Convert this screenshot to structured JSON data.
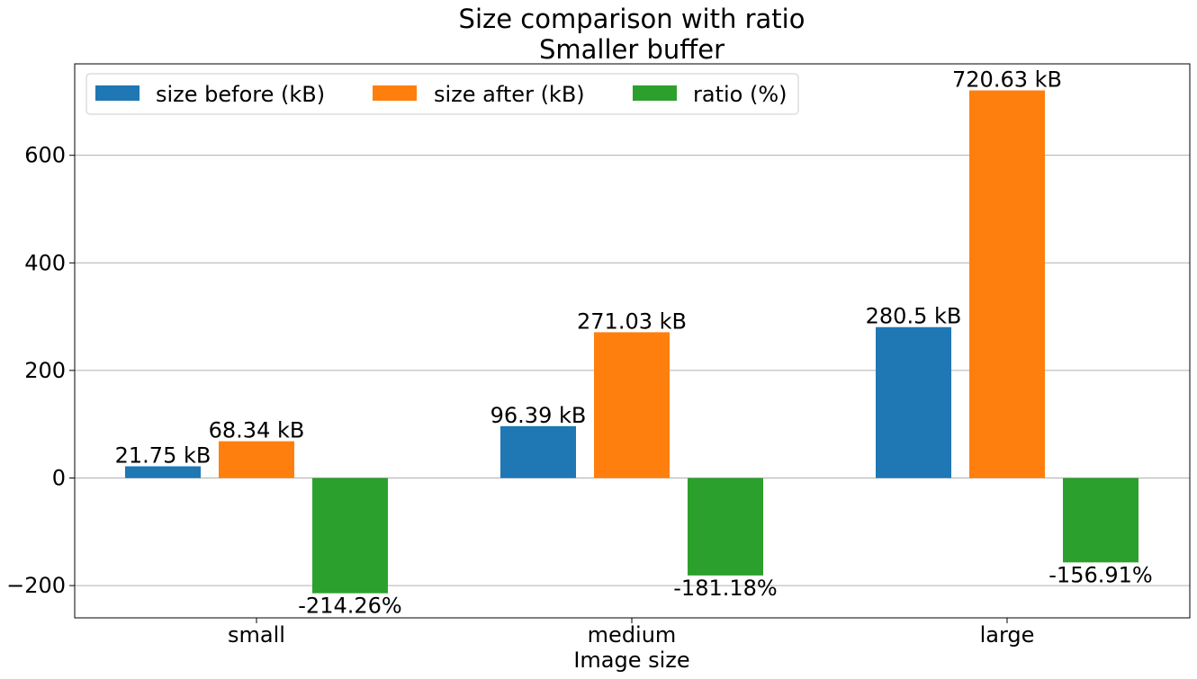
{
  "chart_data": {
    "type": "bar",
    "title": "Size comparison with ratio",
    "subtitle": "Smaller buffer",
    "xlabel": "Image size",
    "ylabel": "",
    "categories": [
      "small",
      "medium",
      "large"
    ],
    "ylim": [
      -260,
      770
    ],
    "yticks": [
      -200,
      0,
      200,
      400,
      600
    ],
    "ytick_labels": [
      "−200",
      "0",
      "200",
      "400",
      "600"
    ],
    "grid": "horizontal",
    "legend_position": "top-left",
    "series": [
      {
        "name": "size before (kB)",
        "color": "#1f77b4",
        "values": [
          21.75,
          96.39,
          280.5
        ],
        "labels": [
          "21.75 kB",
          "96.39 kB",
          "280.5 kB"
        ]
      },
      {
        "name": "size after (kB)",
        "color": "#ff7f0e",
        "values": [
          68.34,
          271.03,
          720.63
        ],
        "labels": [
          "68.34 kB",
          "271.03 kB",
          "720.63 kB"
        ]
      },
      {
        "name": "ratio (%)",
        "color": "#2ca02c",
        "values": [
          -214.26,
          -181.18,
          -156.91
        ],
        "labels": [
          "-214.26%",
          "-181.18%",
          "-156.91%"
        ]
      }
    ]
  }
}
